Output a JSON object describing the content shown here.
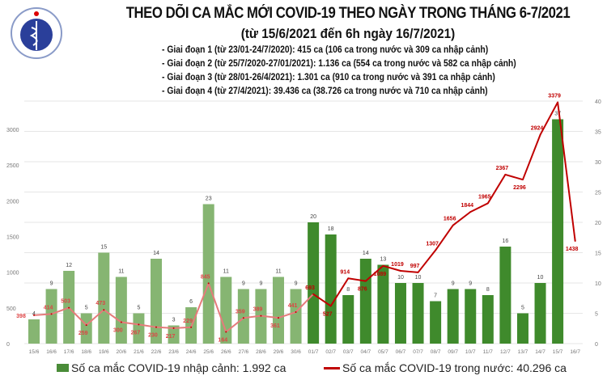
{
  "header": {
    "title": "THEO DÕI CA MẮC MỚI COVID-19 THEO NGÀY TRONG THÁNG 6-7/2021",
    "subtitle": "(từ 15/6/2021 đến 6h ngày 16/7/2021)",
    "logo_text": "BỘ Y TẾ",
    "phases": [
      "- Giai đoạn 1 (từ 23/01-24/7/2020): 415 ca (106 ca trong nước và 309 ca nhập cảnh)",
      "- Giai đoạn 2 (từ 25/7/2020-27/01/2021): 1.136 ca (554 ca trong nước và 582 ca nhập cảnh)",
      "- Giai đoạn 3 (từ 28/01-26/4/2021): 1.301 ca (910 ca trong nước và 391 ca nhập cảnh)",
      "- Giai đoạn 4 (từ 27/4/2021): 39.436 ca (38.726 ca trong nước và 710 ca nhập cảnh)"
    ]
  },
  "chart_data": {
    "type": "bar+line",
    "categories": [
      "15/6",
      "16/6",
      "17/6",
      "18/6",
      "19/6",
      "20/6",
      "21/6",
      "22/6",
      "23/6",
      "24/6",
      "25/6",
      "26/6",
      "27/6",
      "28/6",
      "29/6",
      "30/6",
      "01/7",
      "02/7",
      "03/7",
      "04/7",
      "05/7",
      "06/7",
      "07/7",
      "08/7",
      "09/7",
      "10/7",
      "11/7",
      "12/7",
      "13/7",
      "14/7",
      "15/7",
      "16/7"
    ],
    "series": [
      {
        "name": "Số ca mắc COVID-19 nhập cảnh: 1.992 ca",
        "type": "bar",
        "axis": "right",
        "values": [
          4,
          9,
          12,
          5,
          15,
          11,
          5,
          14,
          3,
          6,
          23,
          11,
          9,
          9,
          11,
          9,
          20,
          18,
          8,
          14,
          13,
          10,
          10,
          7,
          9,
          9,
          8,
          16,
          5,
          10,
          37,
          null
        ],
        "color_early": "#86b572",
        "color": "#3f8a2c"
      },
      {
        "name": "Số ca mắc COVID-19 trong nước: 40.296 ca",
        "type": "line",
        "axis": "left",
        "values": [
          398,
          414,
          503,
          259,
          473,
          300,
          267,
          230,
          217,
          229,
          845,
          164,
          359,
          389,
          361,
          441,
          693,
          527,
          914,
          876,
          1089,
          1019,
          997,
          1307,
          1656,
          1844,
          1965,
          2367,
          2296,
          2924,
          3379,
          1438
        ],
        "color_early": "#e57b7b",
        "color": "#c00000"
      }
    ],
    "left_axis": {
      "ticks": [
        0,
        500,
        1000,
        1500,
        2000,
        2500,
        3000
      ]
    },
    "right_axis": {
      "ticks": [
        0,
        5,
        10,
        15,
        20,
        25,
        30,
        35,
        40
      ],
      "ylim": [
        0,
        40
      ]
    },
    "grid": true,
    "legend": "bottom"
  }
}
